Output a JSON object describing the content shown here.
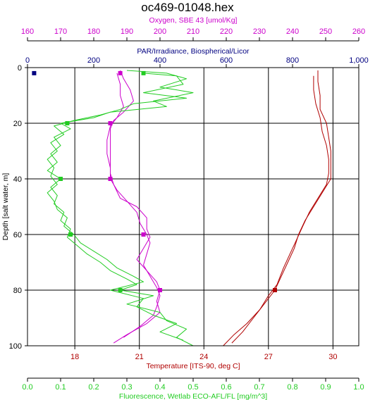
{
  "chart_data": {
    "type": "line",
    "title": "oc469-01048.hex",
    "y_axis": {
      "label": "Depth [salt water, m]",
      "range": [
        0,
        100
      ],
      "inverted": true,
      "ticks": [
        "0",
        "20",
        "40",
        "60",
        "80",
        "100"
      ],
      "tick_values": [
        0,
        20,
        40,
        60,
        80,
        100
      ]
    },
    "x_axes": [
      {
        "key": "oxygen",
        "label": "Oxygen, SBE 43 [umol/Kg]",
        "position": "top",
        "color": "#cc00cc",
        "range": [
          160,
          260
        ],
        "ticks": [
          "160",
          "170",
          "180",
          "190",
          "200",
          "210",
          "220",
          "230",
          "240",
          "250",
          "260"
        ],
        "tick_values": [
          160,
          170,
          180,
          190,
          200,
          210,
          220,
          230,
          240,
          250,
          260
        ]
      },
      {
        "key": "par",
        "label": "PAR/Irradiance, Biospherical/Licor",
        "position": "top",
        "color": "#000080",
        "range": [
          0,
          1000
        ],
        "ticks": [
          "0",
          "200",
          "400",
          "600",
          "800",
          "1,000"
        ],
        "tick_values": [
          0,
          200,
          400,
          600,
          800,
          1000
        ]
      },
      {
        "key": "temperature",
        "label": "Temperature [ITS-90, deg C]",
        "position": "bottom",
        "color": "#b00000",
        "range": [
          15.8,
          31.2
        ],
        "ticks": [
          "18",
          "21",
          "24",
          "27",
          "30"
        ],
        "tick_values": [
          18,
          21,
          24,
          27,
          30
        ]
      },
      {
        "key": "fluorescence",
        "label": "Fluorescence, Wetlab ECO-AFL/FL [mg/m^3]",
        "position": "bottom",
        "color": "#22cc22",
        "range": [
          0,
          1.0
        ],
        "ticks": [
          "0.0",
          "0.1",
          "0.2",
          "0.3",
          "0.4",
          "0.5",
          "0.6",
          "0.7",
          "0.8",
          "0.9",
          "1.0"
        ],
        "tick_values": [
          0,
          0.1,
          0.2,
          0.3,
          0.4,
          0.5,
          0.6,
          0.7,
          0.8,
          0.9,
          1.0
        ]
      }
    ],
    "grid": true,
    "series": [
      {
        "axis": "temperature",
        "color": "#b00000",
        "points": [
          [
            29.3,
            1
          ],
          [
            29.3,
            5
          ],
          [
            29.4,
            10
          ],
          [
            29.4,
            15
          ],
          [
            29.7,
            20
          ],
          [
            29.8,
            25
          ],
          [
            29.9,
            30
          ],
          [
            29.9,
            35
          ],
          [
            29.9,
            40
          ],
          [
            29.5,
            45
          ],
          [
            29.1,
            50
          ],
          [
            28.7,
            55
          ],
          [
            28.4,
            60
          ],
          [
            28.2,
            65
          ],
          [
            27.9,
            70
          ],
          [
            27.6,
            75
          ],
          [
            27.3,
            80
          ],
          [
            26.8,
            85
          ],
          [
            26.3,
            90
          ],
          [
            25.8,
            95
          ],
          [
            25.3,
            99
          ]
        ]
      },
      {
        "axis": "temperature",
        "color": "#b00000",
        "points": [
          [
            29.1,
            3
          ],
          [
            29.1,
            8
          ],
          [
            29.2,
            13
          ],
          [
            29.4,
            18
          ],
          [
            29.5,
            23
          ],
          [
            29.7,
            28
          ],
          [
            29.8,
            33
          ],
          [
            29.8,
            38
          ],
          [
            29.7,
            42
          ],
          [
            29.3,
            47
          ],
          [
            28.9,
            52
          ],
          [
            28.6,
            57
          ],
          [
            28.3,
            62
          ],
          [
            28.0,
            67
          ],
          [
            27.7,
            72
          ],
          [
            27.4,
            78
          ],
          [
            27.0,
            82
          ],
          [
            26.6,
            87
          ],
          [
            26.0,
            92
          ],
          [
            25.4,
            96
          ],
          [
            24.9,
            100
          ]
        ]
      },
      {
        "axis": "oxygen",
        "color": "#cc00cc",
        "points": [
          [
            188,
            1
          ],
          [
            189,
            4
          ],
          [
            191,
            8
          ],
          [
            192,
            12
          ],
          [
            189,
            16
          ],
          [
            186,
            19
          ],
          [
            185,
            22
          ],
          [
            185,
            28
          ],
          [
            185,
            34
          ],
          [
            185,
            38
          ],
          [
            186,
            42
          ],
          [
            188,
            47
          ],
          [
            193,
            50
          ],
          [
            196,
            54
          ],
          [
            196,
            58
          ],
          [
            197,
            61
          ],
          [
            195,
            65
          ],
          [
            193,
            69
          ],
          [
            196,
            73
          ],
          [
            199,
            77
          ],
          [
            200,
            80
          ],
          [
            199,
            84
          ],
          [
            200,
            88
          ],
          [
            196,
            92
          ],
          [
            190,
            96
          ],
          [
            186,
            99
          ]
        ]
      },
      {
        "axis": "oxygen",
        "color": "#cc00cc",
        "points": [
          [
            187,
            2
          ],
          [
            188,
            6
          ],
          [
            188,
            10
          ],
          [
            189,
            14
          ],
          [
            187,
            18
          ],
          [
            185,
            21
          ],
          [
            184,
            26
          ],
          [
            184,
            31
          ],
          [
            185,
            36
          ],
          [
            185,
            40
          ],
          [
            187,
            44
          ],
          [
            190,
            48
          ],
          [
            193,
            52
          ],
          [
            194,
            56
          ],
          [
            196,
            60
          ],
          [
            197,
            63
          ],
          [
            196,
            67
          ],
          [
            195,
            71
          ],
          [
            197,
            75
          ],
          [
            199,
            79
          ],
          [
            200,
            82
          ],
          [
            199,
            86
          ],
          [
            198,
            89
          ],
          [
            194,
            93
          ],
          [
            189,
            97
          ]
        ]
      },
      {
        "axis": "fluorescence",
        "color": "#22cc22",
        "points": [
          [
            0.3,
            1
          ],
          [
            0.42,
            2
          ],
          [
            0.48,
            4
          ],
          [
            0.4,
            7
          ],
          [
            0.5,
            9
          ],
          [
            0.38,
            12
          ],
          [
            0.42,
            14
          ],
          [
            0.25,
            16
          ],
          [
            0.2,
            18
          ],
          [
            0.1,
            20
          ],
          [
            0.13,
            22
          ],
          [
            0.08,
            25
          ],
          [
            0.1,
            28
          ],
          [
            0.07,
            31
          ],
          [
            0.09,
            34
          ],
          [
            0.06,
            37
          ],
          [
            0.1,
            40
          ],
          [
            0.07,
            43
          ],
          [
            0.09,
            46
          ],
          [
            0.08,
            49
          ],
          [
            0.11,
            52
          ],
          [
            0.1,
            55
          ],
          [
            0.13,
            58
          ],
          [
            0.12,
            61
          ],
          [
            0.15,
            64
          ],
          [
            0.18,
            67
          ],
          [
            0.22,
            70
          ],
          [
            0.25,
            73
          ],
          [
            0.3,
            76
          ],
          [
            0.33,
            78
          ],
          [
            0.28,
            80
          ],
          [
            0.38,
            82
          ],
          [
            0.3,
            85
          ],
          [
            0.4,
            88
          ],
          [
            0.42,
            91
          ],
          [
            0.48,
            94
          ],
          [
            0.45,
            97
          ],
          [
            0.5,
            100
          ]
        ]
      },
      {
        "axis": "fluorescence",
        "color": "#22cc22",
        "points": [
          [
            0.35,
            2
          ],
          [
            0.45,
            3
          ],
          [
            0.47,
            6
          ],
          [
            0.35,
            9
          ],
          [
            0.48,
            11
          ],
          [
            0.32,
            13
          ],
          [
            0.28,
            15
          ],
          [
            0.22,
            17
          ],
          [
            0.14,
            19
          ],
          [
            0.08,
            21
          ],
          [
            0.11,
            24
          ],
          [
            0.07,
            27
          ],
          [
            0.09,
            30
          ],
          [
            0.06,
            33
          ],
          [
            0.08,
            36
          ],
          [
            0.07,
            39
          ],
          [
            0.09,
            42
          ],
          [
            0.06,
            45
          ],
          [
            0.08,
            48
          ],
          [
            0.09,
            51
          ],
          [
            0.12,
            54
          ],
          [
            0.11,
            57
          ],
          [
            0.14,
            60
          ],
          [
            0.16,
            63
          ],
          [
            0.2,
            66
          ],
          [
            0.24,
            69
          ],
          [
            0.27,
            72
          ],
          [
            0.32,
            75
          ],
          [
            0.35,
            77
          ],
          [
            0.25,
            80
          ],
          [
            0.35,
            83
          ],
          [
            0.33,
            86
          ],
          [
            0.38,
            89
          ],
          [
            0.45,
            92
          ],
          [
            0.4,
            95
          ],
          [
            0.47,
            98
          ]
        ]
      },
      {
        "axis": "par",
        "color": "#000080",
        "points": [
          [
            20,
            1.5
          ],
          [
            22,
            2.0
          ]
        ]
      }
    ],
    "markers": [
      {
        "axis": "oxygen",
        "color": "#cc00cc",
        "points": [
          [
            188,
            2
          ],
          [
            185,
            20
          ],
          [
            185,
            40
          ],
          [
            195,
            60
          ],
          [
            200,
            80
          ]
        ]
      },
      {
        "axis": "temperature",
        "color": "#b00000",
        "points": [
          [
            27.3,
            80
          ]
        ]
      },
      {
        "axis": "fluorescence",
        "color": "#22cc22",
        "points": [
          [
            0.35,
            2
          ],
          [
            0.12,
            20
          ],
          [
            0.1,
            40
          ],
          [
            0.13,
            60
          ],
          [
            0.28,
            80
          ]
        ]
      },
      {
        "axis": "par",
        "color": "#000080",
        "points": [
          [
            20,
            2
          ]
        ]
      }
    ]
  }
}
